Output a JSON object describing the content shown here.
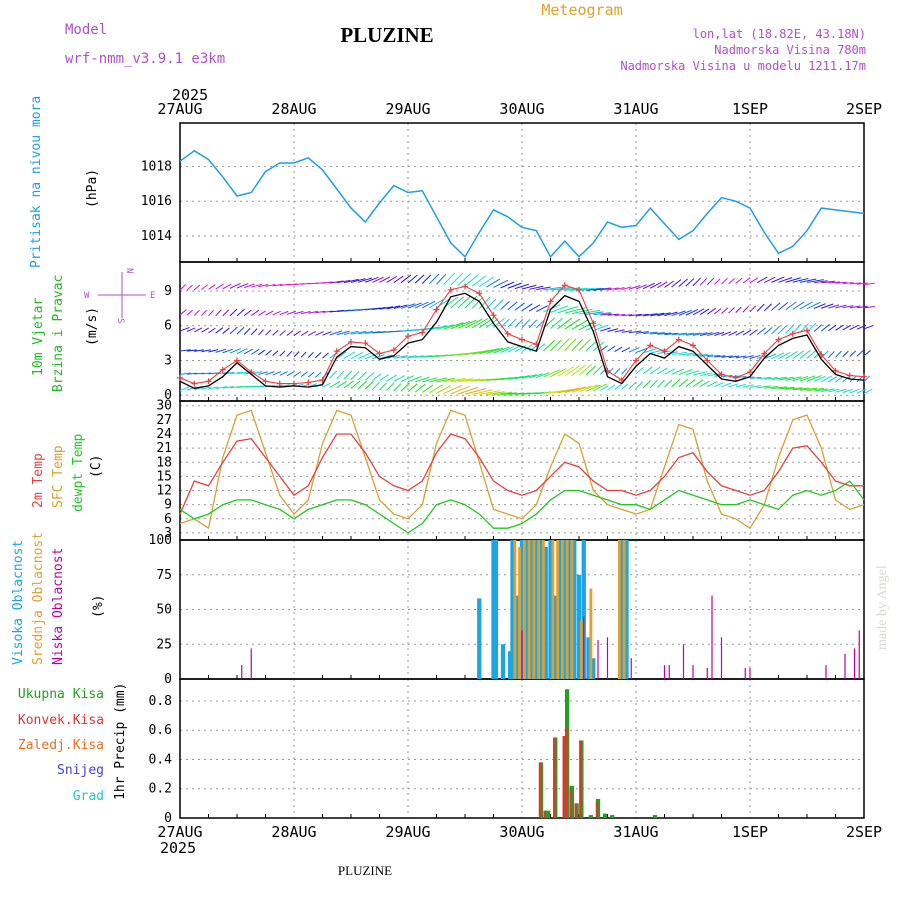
{
  "header": {
    "model_label": "Model",
    "model_name": "wrf-nmm_v3.9.1 e3km",
    "station": "PLUZINE",
    "meteogram": "Meteogram",
    "lonlat": "lon,lat (18.82E, 43.18N)",
    "elevation": "Nadmorska Visina 780m",
    "model_elevation": "Nadmorska Visina u modelu 1211.17m",
    "year_top": "2025",
    "year_bottom": "2025",
    "footer_station": "PLUZINE",
    "watermark": "made by Angel"
  },
  "colors": {
    "pressure": "#1ca0e6",
    "wind_label": "#22b822",
    "wind_dir_label": "#b050c8",
    "temp2m": "#e84040",
    "sfc": "#d9a030",
    "dewpt": "#22c822",
    "cloud_high": "#1aa6e6",
    "cloud_mid": "#e0a030",
    "cloud_low": "#c000a0",
    "precip_total": "#22a022",
    "precip_conv": "#e83030",
    "precip_frozen": "#e87020",
    "snow": "#4040e0",
    "hail": "#20c8c8",
    "header_purple": "#b050c8",
    "header_orange": "#e0a030"
  },
  "chart_data": [
    {
      "type": "line",
      "panel": "pressure",
      "ylabel_title": "Pritisak na nivou mora",
      "unit": "(hPa)",
      "ylim": [
        1012.5,
        1020.5
      ],
      "yticks": [
        1014,
        1016,
        1018
      ],
      "x_hours": [
        0,
        3,
        6,
        9,
        12,
        15,
        18,
        21,
        24,
        27,
        30,
        33,
        36,
        39,
        42,
        45,
        48,
        51,
        54,
        57,
        60,
        63,
        66,
        69,
        72,
        75,
        78,
        81,
        84,
        87,
        90,
        93,
        96,
        99,
        102,
        105,
        108,
        111,
        114,
        117,
        120,
        123,
        126,
        129,
        132,
        135,
        138,
        141,
        144
      ],
      "values": [
        1018.3,
        1018.9,
        1018.4,
        1017.4,
        1016.3,
        1016.5,
        1017.7,
        1018.2,
        1018.2,
        1018.5,
        1017.8,
        1016.7,
        1015.6,
        1014.8,
        1015.9,
        1016.9,
        1016.5,
        1016.6,
        1015.1,
        1013.6,
        1012.8,
        1014.2,
        1015.5,
        1015.1,
        1014.5,
        1014.3,
        1012.8,
        1013.7,
        1012.8,
        1013.6,
        1014.8,
        1014.5,
        1014.6,
        1015.6,
        1014.7,
        1013.8,
        1014.3,
        1015.3,
        1016.2,
        1016.0,
        1015.6,
        1014.2,
        1013.0,
        1013.4,
        1014.3,
        1015.6,
        1015.5,
        1015.4,
        1015.3
      ]
    },
    {
      "type": "line",
      "panel": "wind",
      "ylabel_title": "10m Vjetar",
      "ylabel_sub": "Brzina i Pravac",
      "unit": "(m/s)",
      "dir_letters": [
        "N",
        "W",
        "E",
        "S"
      ],
      "ylim": [
        -0.5,
        11.5
      ],
      "yticks": [
        0,
        3,
        6,
        9
      ],
      "x_hours": [
        0,
        3,
        6,
        9,
        12,
        15,
        18,
        21,
        24,
        27,
        30,
        33,
        36,
        39,
        42,
        45,
        48,
        51,
        54,
        57,
        60,
        63,
        66,
        69,
        72,
        75,
        78,
        81,
        84,
        87,
        90,
        93,
        96,
        99,
        102,
        105,
        108,
        111,
        114,
        117,
        120,
        123,
        126,
        129,
        132,
        135,
        138,
        141,
        144
      ],
      "values": [
        1.2,
        0.6,
        0.8,
        1.6,
        2.8,
        1.8,
        0.8,
        0.7,
        0.8,
        0.7,
        0.9,
        3.3,
        4.2,
        4.1,
        3.1,
        3.4,
        4.5,
        4.8,
        6.3,
        8.5,
        8.8,
        8.1,
        6.2,
        4.6,
        4.2,
        3.8,
        7.4,
        8.6,
        8.1,
        5.5,
        1.6,
        1.0,
        2.5,
        3.6,
        3.2,
        4.2,
        3.8,
        2.6,
        1.4,
        1.2,
        1.6,
        3.2,
        4.3,
        4.9,
        5.2,
        3.1,
        1.8,
        1.4,
        1.3
      ],
      "gust": [
        1.5,
        1.0,
        1.2,
        2.2,
        3.0,
        2.0,
        1.2,
        1.0,
        1.0,
        1.1,
        1.3,
        3.8,
        4.6,
        4.5,
        3.6,
        3.9,
        5.1,
        5.4,
        7.4,
        9.1,
        9.4,
        8.8,
        6.9,
        5.3,
        4.8,
        4.4,
        8.1,
        9.5,
        9.1,
        6.2,
        2.1,
        1.3,
        3.0,
        4.3,
        3.8,
        4.8,
        4.3,
        3.0,
        1.8,
        1.5,
        2.0,
        3.6,
        4.8,
        5.3,
        5.6,
        3.5,
        2.1,
        1.7,
        1.6
      ],
      "arrow_rows": [
        0.4,
        1.5,
        3.5,
        5.5,
        7.2,
        9.4
      ]
    },
    {
      "type": "line",
      "panel": "temperature",
      "labels": [
        "2m Temp",
        "SFC Temp",
        "dewpt Temp"
      ],
      "unit": "(C)",
      "ylim": [
        1.5,
        31
      ],
      "yticks": [
        3,
        6,
        9,
        12,
        15,
        18,
        21,
        24,
        27,
        30
      ],
      "x_hours": [
        0,
        3,
        6,
        9,
        12,
        15,
        18,
        21,
        24,
        27,
        30,
        33,
        36,
        39,
        42,
        45,
        48,
        51,
        54,
        57,
        60,
        63,
        66,
        69,
        72,
        75,
        78,
        81,
        84,
        87,
        90,
        93,
        96,
        99,
        102,
        105,
        108,
        111,
        114,
        117,
        120,
        123,
        126,
        129,
        132,
        135,
        138,
        141,
        144
      ],
      "temp2m": [
        7,
        14,
        13,
        18,
        22.5,
        23,
        19,
        15,
        11,
        13,
        19,
        24,
        24,
        20,
        15,
        13,
        12,
        14,
        20,
        24,
        23,
        19,
        14,
        12,
        11,
        12,
        15,
        18,
        17,
        14,
        12,
        12,
        11,
        12,
        15,
        19,
        20,
        16,
        13,
        12,
        11,
        12,
        16,
        21,
        21.5,
        18,
        14,
        13,
        13
      ],
      "sfc": [
        5,
        6,
        4,
        19,
        28,
        29,
        20,
        11,
        7,
        10,
        22,
        29,
        28,
        19,
        10,
        7,
        6,
        9,
        22,
        29,
        28,
        18,
        8,
        7,
        6,
        9,
        17,
        24,
        22,
        12,
        9,
        8,
        7,
        8,
        17,
        26,
        25,
        14,
        7,
        6,
        4,
        9,
        19,
        27,
        28,
        21,
        10,
        8,
        9
      ],
      "dewpt": [
        8,
        6,
        7,
        9,
        10,
        10,
        9,
        8,
        6,
        8,
        9,
        10,
        10,
        9,
        7,
        5,
        3,
        5,
        9,
        10,
        9,
        7,
        4,
        4,
        5,
        7,
        10,
        12,
        12,
        11,
        10,
        9,
        9,
        8,
        10,
        12,
        11,
        10,
        9,
        9,
        10,
        9,
        8,
        11,
        12,
        11,
        12,
        14,
        10
      ]
    },
    {
      "type": "bar",
      "panel": "clouds",
      "labels": [
        "Visoka Oblacnost",
        "Srednja Oblacnost",
        "Niska Oblacnost"
      ],
      "unit": "(%)",
      "ylim": [
        0,
        100
      ],
      "yticks": [
        0,
        25,
        50,
        75,
        100
      ],
      "high": [
        [
          63,
          58
        ],
        [
          66,
          100
        ],
        [
          66.5,
          100
        ],
        [
          68,
          25
        ],
        [
          69.5,
          20
        ],
        [
          70,
          100
        ],
        [
          71,
          60
        ],
        [
          72,
          100
        ],
        [
          73,
          100
        ],
        [
          74,
          100
        ],
        [
          75,
          100
        ],
        [
          76,
          100
        ],
        [
          77,
          95
        ],
        [
          78,
          100
        ],
        [
          79,
          60
        ],
        [
          80,
          100
        ],
        [
          81,
          100
        ],
        [
          82,
          100
        ],
        [
          83,
          100
        ],
        [
          84,
          75
        ],
        [
          85,
          100
        ],
        [
          86,
          30
        ],
        [
          87,
          15
        ],
        [
          93,
          100
        ],
        [
          94,
          100
        ]
      ],
      "mid": [
        [
          70.5,
          100
        ],
        [
          71.5,
          95
        ],
        [
          72.5,
          100
        ],
        [
          73.5,
          100
        ],
        [
          74.5,
          100
        ],
        [
          75.5,
          100
        ],
        [
          76.5,
          100
        ],
        [
          78.5,
          100
        ],
        [
          79.5,
          100
        ],
        [
          80.5,
          100
        ],
        [
          81.5,
          100
        ],
        [
          82.5,
          100
        ],
        [
          84.5,
          42
        ],
        [
          86.5,
          65
        ],
        [
          92.5,
          100
        ],
        [
          93.5,
          100
        ]
      ],
      "low": [
        [
          13,
          10
        ],
        [
          15,
          22
        ],
        [
          72,
          35
        ],
        [
          85,
          45
        ],
        [
          88,
          28
        ],
        [
          90,
          30
        ],
        [
          95,
          15
        ],
        [
          102,
          10
        ],
        [
          103,
          10
        ],
        [
          106,
          25
        ],
        [
          108,
          10
        ],
        [
          111,
          8
        ],
        [
          112,
          60
        ],
        [
          114,
          30
        ],
        [
          119,
          8
        ],
        [
          120,
          8
        ],
        [
          136,
          10
        ],
        [
          140,
          18
        ],
        [
          142,
          22
        ],
        [
          143,
          35
        ]
      ]
    },
    {
      "type": "bar",
      "panel": "precipitation",
      "labels": [
        "Ukupna Kisa",
        "Konvek.Kisa",
        "Zaledj.Kisa",
        "Snijeg",
        "Grad"
      ],
      "ylabel": "1hr Precip (mm)",
      "ylim": [
        0,
        0.95
      ],
      "yticks": [
        0,
        0.2,
        0.4,
        0.6,
        0.8
      ],
      "total": [
        [
          76,
          0.38
        ],
        [
          77,
          0.05
        ],
        [
          77.5,
          0.05
        ],
        [
          79,
          0.55
        ],
        [
          81,
          0.56
        ],
        [
          81.5,
          0.88
        ],
        [
          82.5,
          0.22
        ],
        [
          83.5,
          0.1
        ],
        [
          84.5,
          0.53
        ],
        [
          86.5,
          0.02
        ],
        [
          88,
          0.13
        ],
        [
          89.5,
          0.03
        ],
        [
          91,
          0.02
        ],
        [
          100,
          0.02
        ]
      ],
      "conv": [
        [
          76,
          0.38
        ],
        [
          77,
          0.05
        ],
        [
          79,
          0.55
        ],
        [
          81,
          0.56
        ],
        [
          81.5,
          0.62
        ],
        [
          82.5,
          0.2
        ],
        [
          83.5,
          0.1
        ],
        [
          84.5,
          0.53
        ],
        [
          88,
          0.11
        ]
      ]
    }
  ],
  "x_axis": {
    "labels": [
      "27AUG",
      "28AUG",
      "29AUG",
      "30AUG",
      "31AUG",
      "1SEP",
      "2SEP"
    ],
    "range_hours": [
      0,
      144
    ]
  }
}
